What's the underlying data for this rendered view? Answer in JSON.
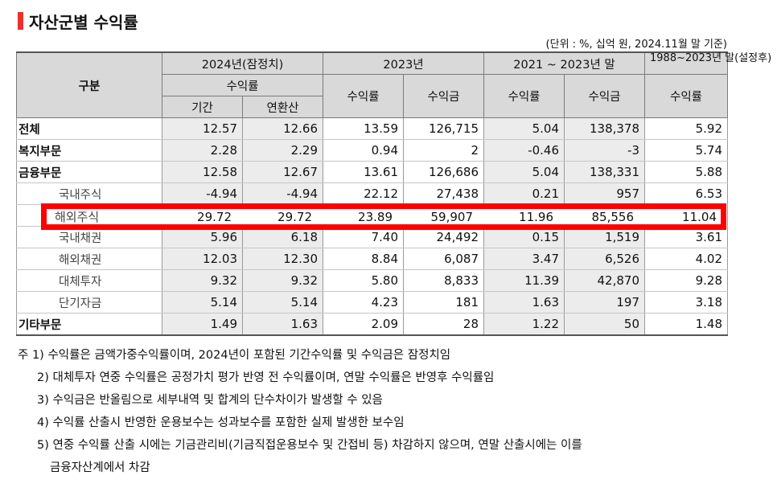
{
  "title": "자산군별 수익률",
  "unit_note": "(단위 : %, 십억 원, 2024.11월 말 기준)",
  "headers": {
    "category": "구분",
    "g2024": "2024년(잠정치)",
    "g2023": "2023년",
    "g2021": "2021 ~ 2023년 말",
    "g1988": "1988~2023년 말(설정후)",
    "yield_rate": "수익률",
    "period": "기간",
    "annualized": "연환산",
    "yield_rate_2023": "수익률",
    "yield_amount_2023": "수익금",
    "yield_rate_2021": "수익률",
    "yield_amount_2021": "수익금",
    "yield_rate_1988": "수익률"
  },
  "rows": [
    {
      "label": "전체",
      "values": [
        "12.57",
        "12.66",
        "13.59",
        "126,715",
        "5.04",
        "138,378",
        "5.92"
      ]
    },
    {
      "label": "복지부문",
      "values": [
        "2.28",
        "2.29",
        "0.94",
        "2",
        "-0.46",
        "-3",
        "5.74"
      ]
    },
    {
      "label": "금융부문",
      "values": [
        "12.58",
        "12.67",
        "13.61",
        "126,686",
        "5.04",
        "138,331",
        "5.88"
      ]
    },
    {
      "label": "국내주식",
      "values": [
        "-4.94",
        "-4.94",
        "22.12",
        "27,438",
        "0.21",
        "957",
        "6.53"
      ]
    },
    {
      "label": "해외주식",
      "values": [
        "29.72",
        "29.72",
        "23.89",
        "59,907",
        "11.96",
        "85,556",
        "11.04"
      ]
    },
    {
      "label": "국내채권",
      "values": [
        "5.96",
        "6.18",
        "7.40",
        "24,492",
        "0.15",
        "1,519",
        "3.61"
      ]
    },
    {
      "label": "해외채권",
      "values": [
        "12.03",
        "12.30",
        "8.84",
        "6,087",
        "3.47",
        "6,526",
        "4.02"
      ]
    },
    {
      "label": "대체투자",
      "values": [
        "9.32",
        "9.32",
        "5.80",
        "8,833",
        "11.39",
        "42,870",
        "9.28"
      ]
    },
    {
      "label": "단기자금",
      "values": [
        "5.14",
        "5.14",
        "4.23",
        "181",
        "1.63",
        "197",
        "3.18"
      ]
    },
    {
      "label": "기타부문",
      "values": [
        "1.49",
        "1.63",
        "2.09",
        "28",
        "1.22",
        "50",
        "1.48"
      ]
    }
  ],
  "highlight_color": "#ff0000",
  "accent_color": "#e8322b",
  "notes": [
    "주 1) 수익률은 금액가중수익률이며, 2024년이 포함된 기간수익률 및 수익금은 잠정치임",
    "2) 대체투자 연중 수익률은 공정가치 평가 반영 전 수익률이며, 연말 수익률은 반영후 수익률임",
    "3) 수익금은 반올림으로 세부내역 및 합계의 단수차이가 발생할 수 있음",
    "4) 수익률 산출시 반영한 운용보수는 성과보수를 포함한 실제 발생한 보수임",
    "5) 연중 수익률 산출 시에는 기금관리비(기금직접운용보수 및 간접비 등) 차감하지 않으며, 연말 산출시에는 이를",
    "금융자산계에서 차감"
  ]
}
